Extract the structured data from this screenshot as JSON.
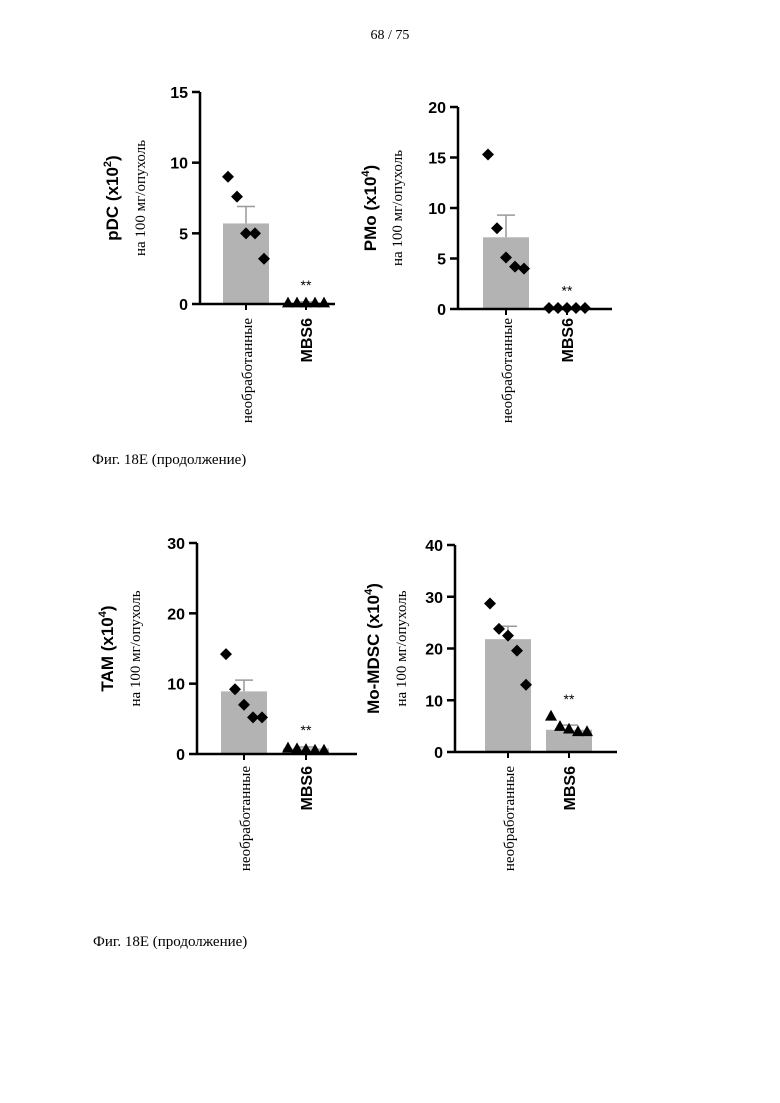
{
  "page_number": "68 / 75",
  "captions": [
    "Фиг. 18E (продолжение)",
    "Фиг. 18E (продолжение)"
  ],
  "chart_data": [
    {
      "type": "bar",
      "ylabel_main": "pDC  (x10",
      "ylabel_exp": "2",
      "ylabel_unit": "на 100 мг/опухоль",
      "ylim": [
        0,
        15
      ],
      "yticks": [
        "0",
        "5",
        "10",
        "15"
      ],
      "categories": [
        "необработанные",
        "MBS6"
      ],
      "values": [
        5.7,
        0.1
      ],
      "errors": [
        1.2,
        0.05
      ],
      "points": [
        [
          9.0,
          7.6,
          5.0,
          5.0,
          3.2
        ],
        [
          0.1,
          0.1,
          0.1,
          0.1,
          0.1
        ]
      ],
      "markers": [
        "diamond",
        "triangle"
      ],
      "annotations": [
        "",
        "**"
      ]
    },
    {
      "type": "bar",
      "ylabel_main": "PMo  (x10",
      "ylabel_exp": "4",
      "ylabel_unit": "на 100 мг/опухоль",
      "ylim": [
        0,
        20
      ],
      "yticks": [
        "0",
        "5",
        "10",
        "15",
        "20"
      ],
      "categories": [
        "необработанные",
        "MBS6"
      ],
      "values": [
        7.1,
        0.1
      ],
      "errors": [
        2.2,
        0.05
      ],
      "points": [
        [
          15.3,
          8.0,
          5.1,
          4.2,
          4.0
        ],
        [
          0.1,
          0.1,
          0.1,
          0.1,
          0.1
        ]
      ],
      "markers": [
        "diamond",
        "diamond"
      ],
      "annotations": [
        "",
        "**"
      ]
    },
    {
      "type": "bar",
      "ylabel_main": "TAM  (x10",
      "ylabel_exp": "4",
      "ylabel_unit": "на 100 мг/опухоль",
      "ylim": [
        0,
        30
      ],
      "yticks": [
        "0",
        "10",
        "20",
        "30"
      ],
      "categories": [
        "необработанные",
        "MBS6"
      ],
      "values": [
        8.9,
        0.8
      ],
      "errors": [
        1.6,
        0.2
      ],
      "points": [
        [
          14.2,
          9.2,
          7.0,
          5.2,
          5.2
        ],
        [
          0.9,
          0.8,
          0.7,
          0.6,
          0.6
        ]
      ],
      "markers": [
        "diamond",
        "triangle"
      ],
      "annotations": [
        "",
        "**"
      ]
    },
    {
      "type": "bar",
      "ylabel_main": "Mo-MDSC  (x10",
      "ylabel_exp": "4",
      "ylabel_unit": "на 100 мг/опухоль",
      "ylim": [
        0,
        40
      ],
      "yticks": [
        "0",
        "10",
        "20",
        "30",
        "40"
      ],
      "categories": [
        "необработанные",
        "MBS6"
      ],
      "values": [
        21.8,
        4.3
      ],
      "errors": [
        2.5,
        0.9
      ],
      "points": [
        [
          28.7,
          23.8,
          22.5,
          19.6,
          13.0
        ],
        [
          7.0,
          5.0,
          4.5,
          4.0,
          4.0
        ]
      ],
      "markers": [
        "diamond",
        "triangle"
      ],
      "annotations": [
        "",
        "**"
      ]
    }
  ]
}
